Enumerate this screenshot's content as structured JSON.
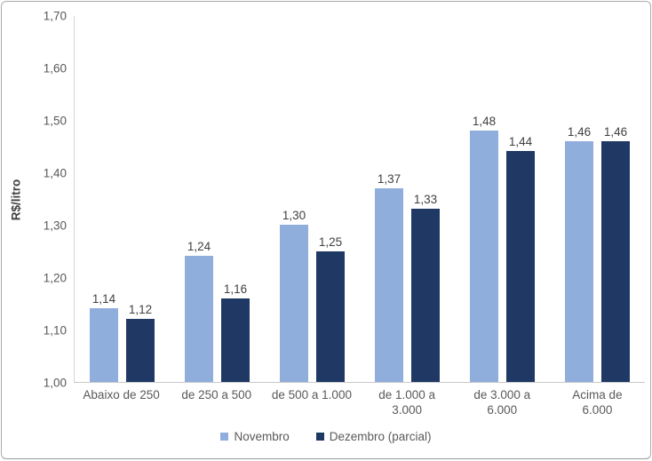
{
  "chart_data": {
    "type": "bar",
    "title": "",
    "ylabel": "R$/litro",
    "xlabel": "",
    "ylim": [
      1.0,
      1.7
    ],
    "ytick_step": 0.1,
    "yticks": [
      "1,70",
      "1,60",
      "1,50",
      "1,40",
      "1,30",
      "1,20",
      "1,10",
      "1,00"
    ],
    "grid": false,
    "legend_position": "bottom",
    "categories": [
      "Abaixo de 250",
      "de 250 a 500",
      "de 500 a 1.000",
      "de 1.000 a 3.000",
      "de 3.000 a 6.000",
      "Acima de 6.000"
    ],
    "category_labels": [
      "Abaixo de 250",
      "de 250 a 500",
      "de 500 a 1.000",
      "de 1.000 a\n3.000",
      "de 3.000 a\n6.000",
      "Acima de\n6.000"
    ],
    "series": [
      {
        "name": "Novembro",
        "color": "#8FAEDC",
        "values": [
          1.14,
          1.24,
          1.3,
          1.37,
          1.48,
          1.46
        ]
      },
      {
        "name": "Dezembro (parcial)",
        "color": "#1F3864",
        "values": [
          1.12,
          1.16,
          1.25,
          1.33,
          1.44,
          1.46
        ]
      }
    ],
    "value_label_format": "comma-decimal-2",
    "colors": {
      "axis_line": "#C9C9C9",
      "tick_text": "#595959",
      "value_text": "#404040",
      "frame_border": "#ABABAB"
    }
  }
}
